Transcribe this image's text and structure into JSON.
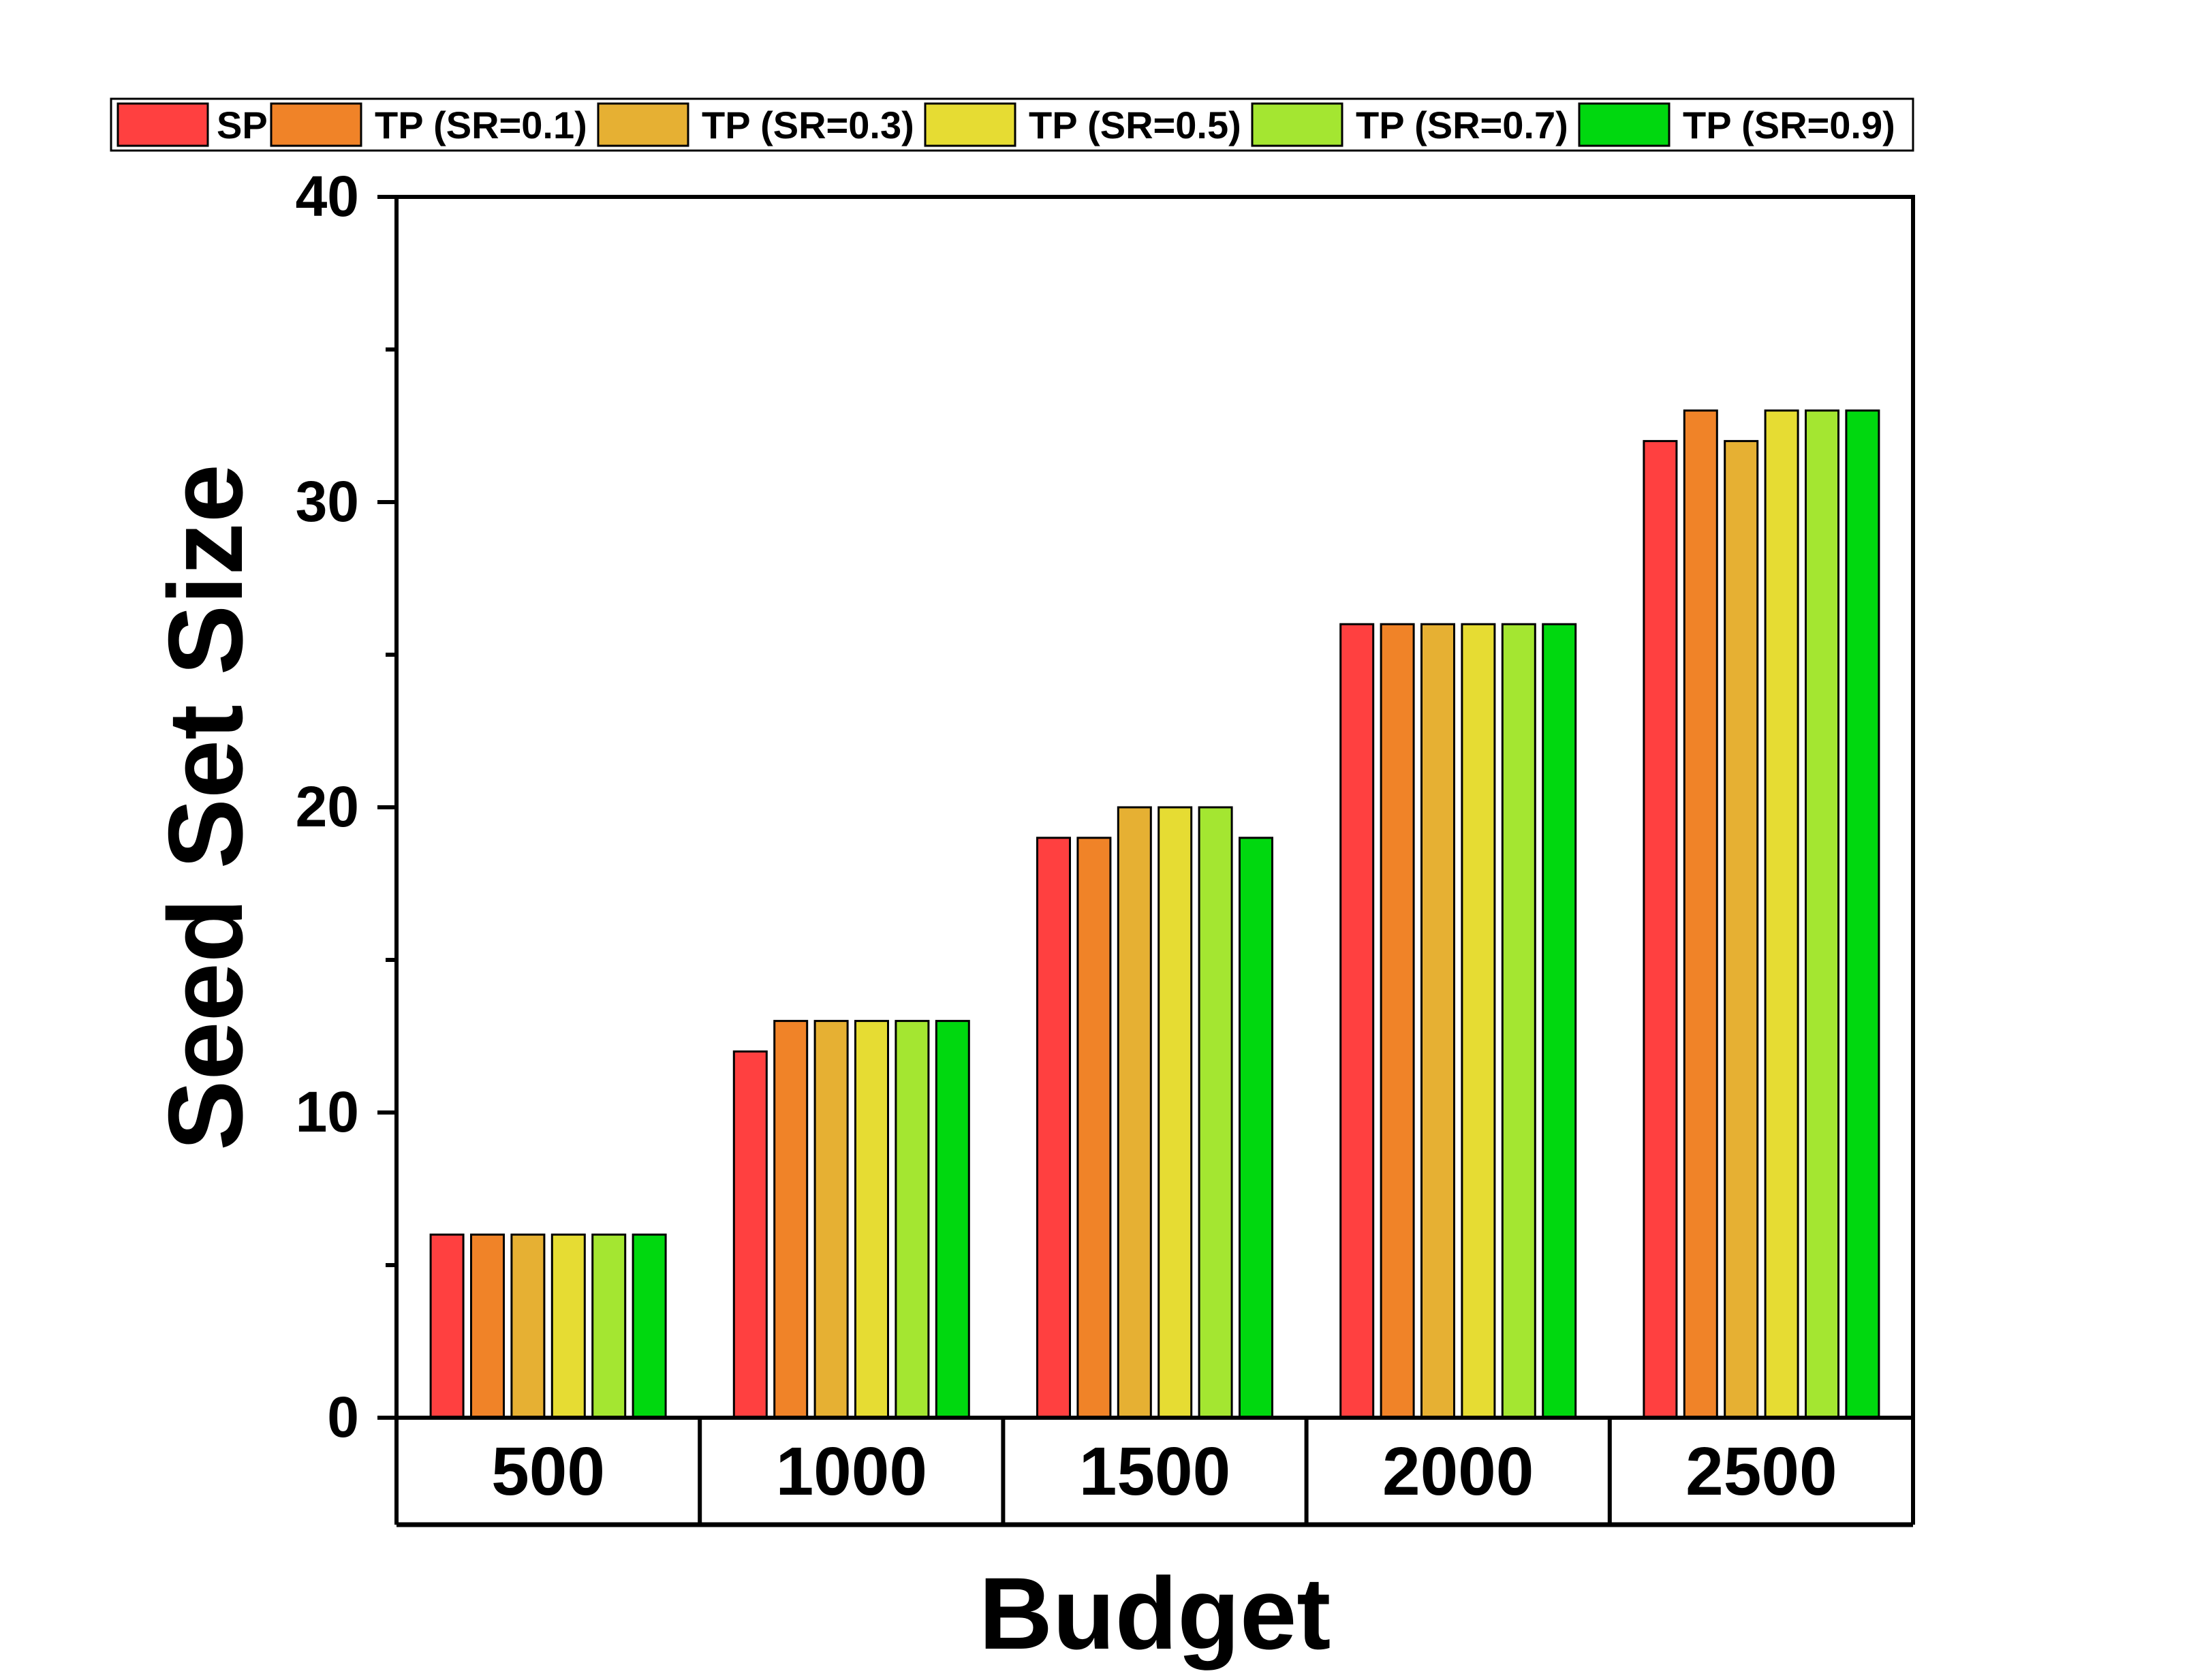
{
  "chart_data": {
    "type": "bar",
    "categories": [
      "500",
      "1000",
      "1500",
      "2000",
      "2500"
    ],
    "series": [
      {
        "name": "SP",
        "color": "#FF4040",
        "values": [
          6,
          12,
          19,
          26,
          32
        ]
      },
      {
        "name": "TP (SR=0.1)",
        "color": "#F08328",
        "values": [
          6,
          13,
          19,
          26,
          33
        ]
      },
      {
        "name": "TP (SR=0.3)",
        "color": "#E6B033",
        "values": [
          6,
          13,
          20,
          26,
          32
        ]
      },
      {
        "name": "TP (SR=0.5)",
        "color": "#E6DC33",
        "values": [
          6,
          13,
          20,
          26,
          33
        ]
      },
      {
        "name": "TP (SR=0.7)",
        "color": "#A4E631",
        "values": [
          6,
          13,
          20,
          26,
          33
        ]
      },
      {
        "name": "TP (SR=0.9)",
        "color": "#00D80F",
        "values": [
          6,
          13,
          19,
          26,
          33
        ]
      }
    ],
    "xlabel": "Budget",
    "ylabel": "Seed Set Size",
    "ylim": [
      0,
      40
    ],
    "yticks": [
      "0",
      "10",
      "20",
      "30",
      "40"
    ],
    "grid": false,
    "legend_position": "top"
  }
}
